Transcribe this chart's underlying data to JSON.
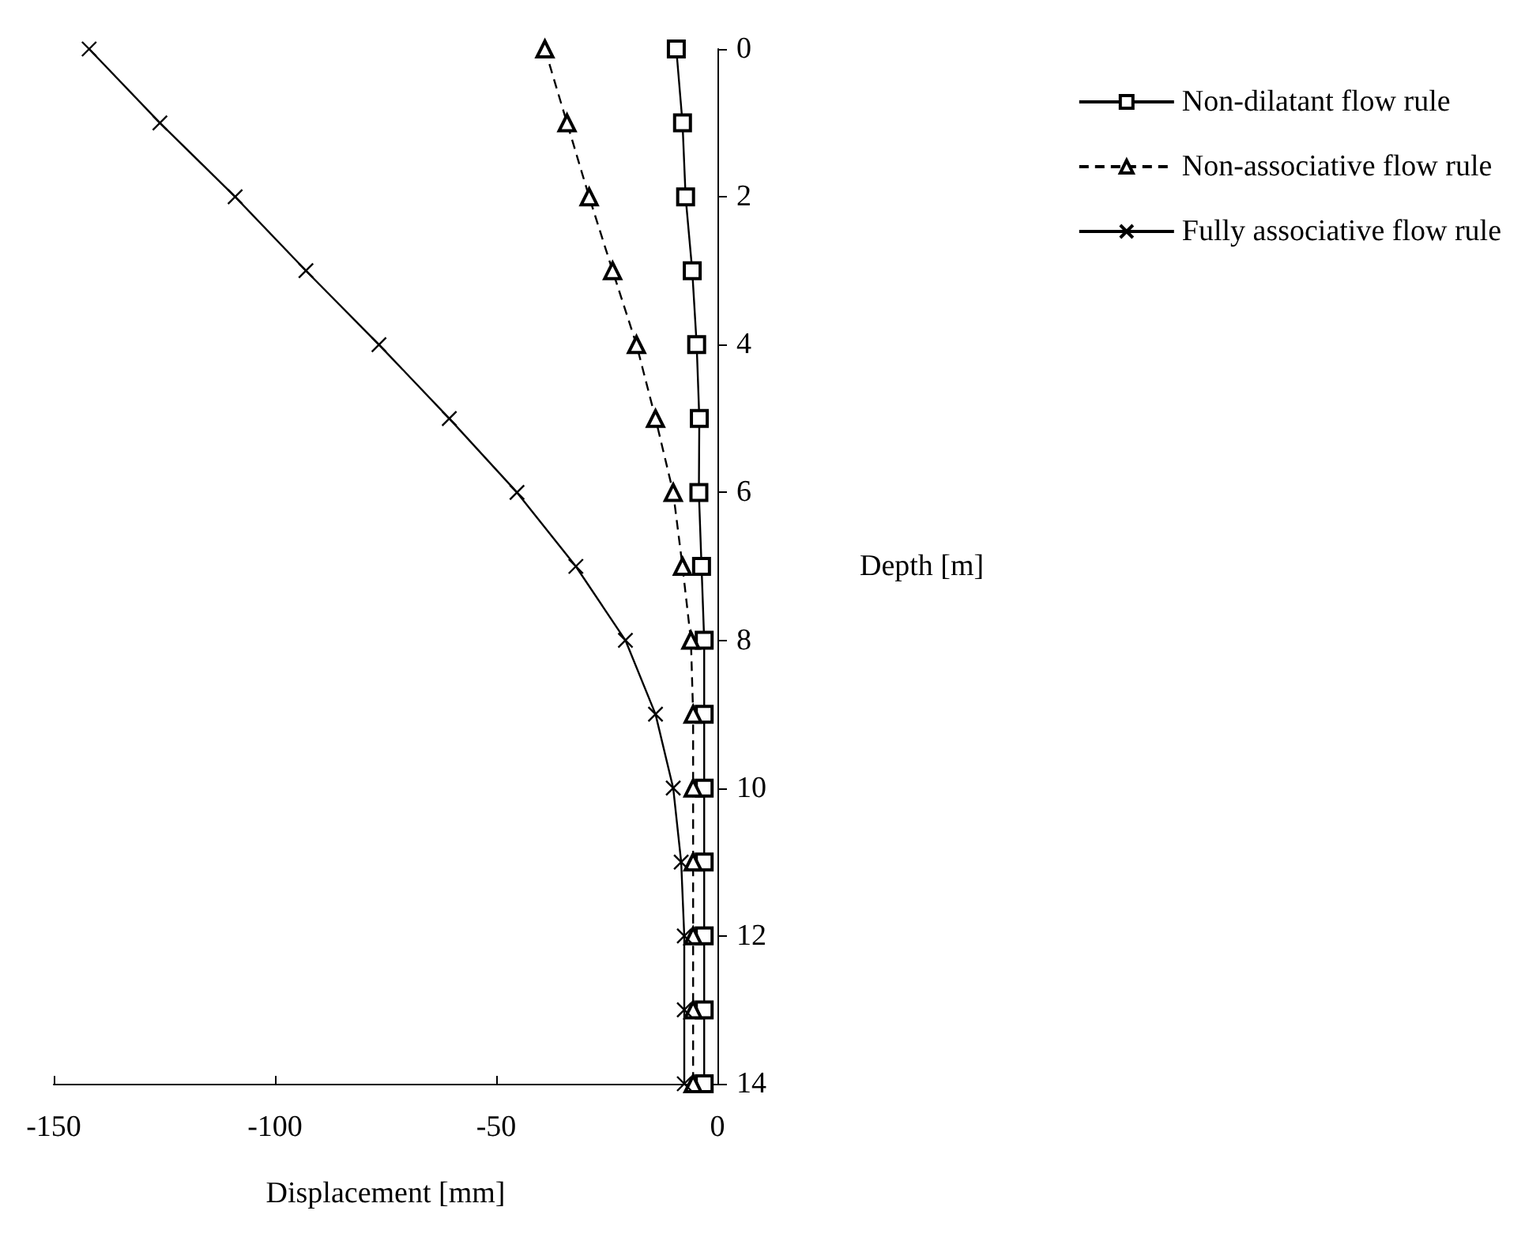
{
  "chart_data": {
    "type": "line",
    "xlabel": "Displacement [mm]",
    "ylabel": "Depth [m]",
    "xlim": [
      -150,
      0
    ],
    "xticks": [
      -150,
      -100,
      -50,
      0
    ],
    "ylim": [
      14,
      0
    ],
    "yticks": [
      0,
      2,
      4,
      6,
      8,
      10,
      12,
      14
    ],
    "grid": false,
    "legend": "top right",
    "series": [
      {
        "name": "Non-dilatant flow rule",
        "color": "#000000",
        "marker": "square",
        "line_style": "solid",
        "x": [
          -9.3,
          -7.9,
          -7.2,
          -5.7,
          -4.7,
          -4.1,
          -4.2,
          -3.6,
          -3,
          -3,
          -3,
          -3,
          -3,
          -3,
          -3
        ],
        "values": [
          0,
          1,
          2,
          3,
          4,
          5,
          6,
          7,
          8,
          9,
          10,
          11,
          12,
          13,
          14
        ]
      },
      {
        "name": "Non-associative flow rule",
        "color": "#000000",
        "marker": "triangle",
        "line_style": "dashed",
        "x": [
          -39,
          -34,
          -29,
          -23.7,
          -18.3,
          -14,
          -10,
          -7.9,
          -6,
          -5.5,
          -5.5,
          -5.5,
          -5.5,
          -5.5,
          -5.5
        ],
        "values": [
          0,
          1,
          2,
          3,
          4,
          5,
          6,
          7,
          8,
          9,
          10,
          11,
          12,
          13,
          14
        ]
      },
      {
        "name": "Fully associative flow rule",
        "color": "#000000",
        "marker": "cross",
        "line_style": "solid",
        "x": [
          -142,
          -126,
          -109,
          -93,
          -76.5,
          -60.6,
          -45.3,
          -32,
          -20.8,
          -14,
          -10,
          -8.2,
          -7.5,
          -7.5,
          -7.5
        ],
        "values": [
          0,
          1,
          2,
          3,
          4,
          5,
          6,
          7,
          8,
          9,
          10,
          11,
          12,
          13,
          14
        ]
      }
    ]
  }
}
